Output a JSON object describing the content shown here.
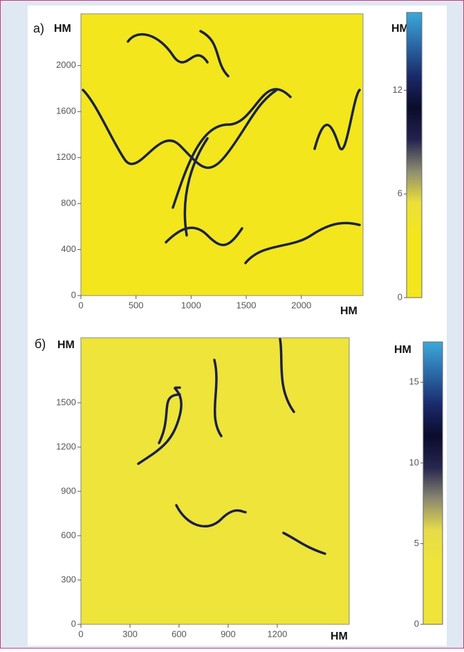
{
  "chart_data": [
    {
      "type": "image",
      "panel_label": "а)",
      "x_label": "НМ",
      "y_label": "НМ",
      "xlim": [
        0,
        2560
      ],
      "xticks": [
        0,
        500,
        1000,
        1500,
        2000
      ],
      "ylim": [
        0,
        2450
      ],
      "yticks": [
        0,
        400,
        800,
        1200,
        1600,
        2000
      ],
      "colorbar_label": "НМ",
      "zlim": [
        0,
        16.5
      ],
      "zticks": [
        0,
        6,
        12
      ],
      "colormap": [
        "#f3e61d",
        "#f3e61d",
        "#f3e61d",
        "#ebe03a",
        "#8c8c70",
        "#22224f",
        "#0b0b2c",
        "#1a2a6a",
        "#2a6aa8",
        "#3ca8da"
      ],
      "trace_color": "#1a2248"
    },
    {
      "type": "image",
      "panel_label": "б)",
      "x_label": "НМ",
      "y_label": "НМ",
      "xlim": [
        0,
        1640
      ],
      "xticks": [
        0,
        300,
        600,
        900,
        1200
      ],
      "ylim": [
        0,
        1940
      ],
      "yticks": [
        0,
        300,
        600,
        900,
        1200,
        1500
      ],
      "colorbar_label": "НМ",
      "zlim": [
        0,
        17.5
      ],
      "zticks": [
        0,
        5,
        10,
        15
      ],
      "colormap": [
        "#eee43a",
        "#eee43a",
        "#eee43a",
        "#e5dc4a",
        "#8a8870",
        "#26264f",
        "#0b0b2c",
        "#1a2a6a",
        "#2a6aa8",
        "#3ca8da"
      ],
      "trace_color": "#1a1f4a"
    }
  ]
}
